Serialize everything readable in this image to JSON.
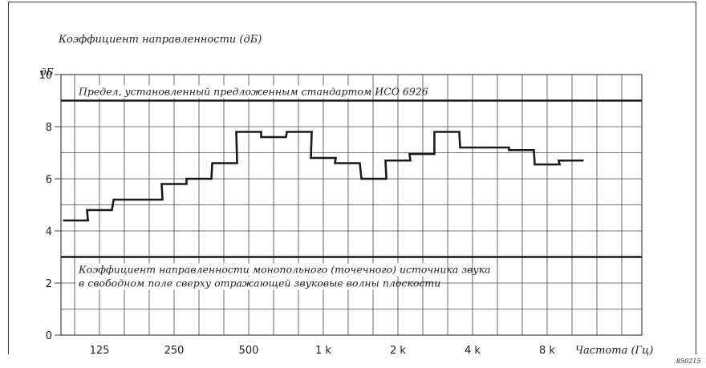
{
  "chart_data": {
    "type": "line",
    "step": true,
    "title": "Коэффициент направленности (дБ)",
    "xlabel": "Частота (Гц)",
    "ylabel": "дБ",
    "ylim": [
      0,
      10
    ],
    "yticks": [
      0,
      2,
      4,
      6,
      8,
      10
    ],
    "xscale": "log",
    "xticks": [
      125,
      250,
      500,
      1000,
      2000,
      4000,
      8000
    ],
    "xtick_labels": [
      "125",
      "250",
      "500",
      "1 k",
      "2 k",
      "4 k",
      "8 k"
    ],
    "grid": true,
    "series": [
      {
        "x": [
          100,
          125,
          160,
          200,
          250,
          315,
          400,
          500,
          630,
          800,
          1000,
          1250,
          1600,
          2000,
          2500,
          3150,
          4000,
          5000,
          6300,
          8000,
          10000
        ],
        "y": [
          4.4,
          4.8,
          5.2,
          5.2,
          5.8,
          6.0,
          6.6,
          7.8,
          7.6,
          7.8,
          6.8,
          6.6,
          6.0,
          6.7,
          6.95,
          7.8,
          7.2,
          7.2,
          7.1,
          6.55,
          6.7
        ]
      }
    ],
    "reference_lines": [
      {
        "y": 9,
        "label": "Предел, установленный предложенным стандартом ИСО 6926"
      },
      {
        "y": 3,
        "label_lines": [
          "Коэффициент направленности монопольного (точечного) источника звука",
          "в свободном поле сверху отражающей звуковые волны плоскости"
        ]
      }
    ],
    "figure_code": "850215"
  },
  "colors": {
    "line": "#1a1a1a",
    "grid": "#444444",
    "ref": "#1a1a1a"
  }
}
